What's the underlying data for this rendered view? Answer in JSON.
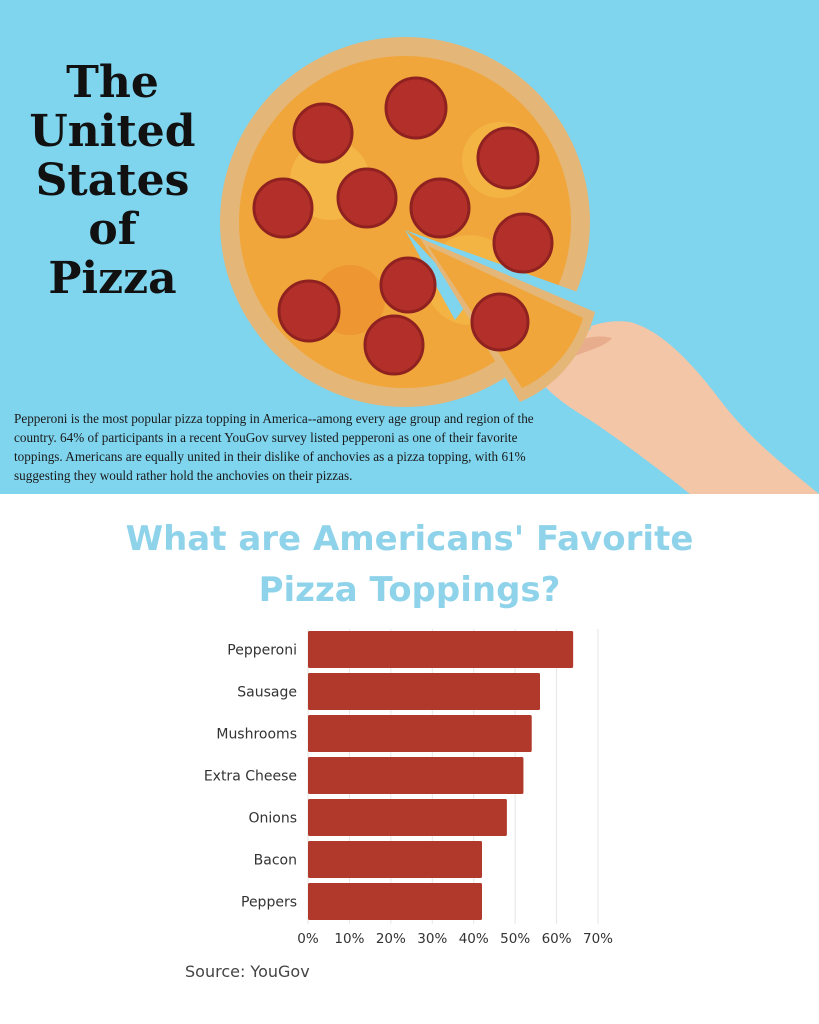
{
  "header": {
    "title_lines": [
      "The",
      "United",
      "States",
      "of",
      "Pizza"
    ],
    "intro": "Pepperoni is the most popular pizza topping in America--among every age group and region of the country. 64% of participants in a recent YouGov survey listed pepperoni as one of their favorite toppings. Americans are equally united in their dislike of anchovies as a pizza topping, with 61% suggesting they would rather hold the anchovies on their pizzas."
  },
  "chart_title_lines": [
    "What are Americans' Favorite",
    "Pizza Toppings?"
  ],
  "source": "Source: YouGov",
  "colors": {
    "hero_background": "#7fd4ee",
    "bar": "#b0392b",
    "title": "#8fd3ea"
  },
  "chart_data": {
    "type": "bar",
    "orientation": "horizontal",
    "title": "What are Americans' Favorite Pizza Toppings?",
    "categories": [
      "Pepperoni",
      "Sausage",
      "Mushrooms",
      "Extra Cheese",
      "Onions",
      "Bacon",
      "Peppers"
    ],
    "values": [
      64,
      56,
      54,
      52,
      48,
      42,
      42
    ],
    "xlim": [
      0,
      70
    ],
    "x_ticks": [
      "0%",
      "10%",
      "20%",
      "30%",
      "40%",
      "50%",
      "60%",
      "70%"
    ],
    "grid": true,
    "legend": "none"
  }
}
